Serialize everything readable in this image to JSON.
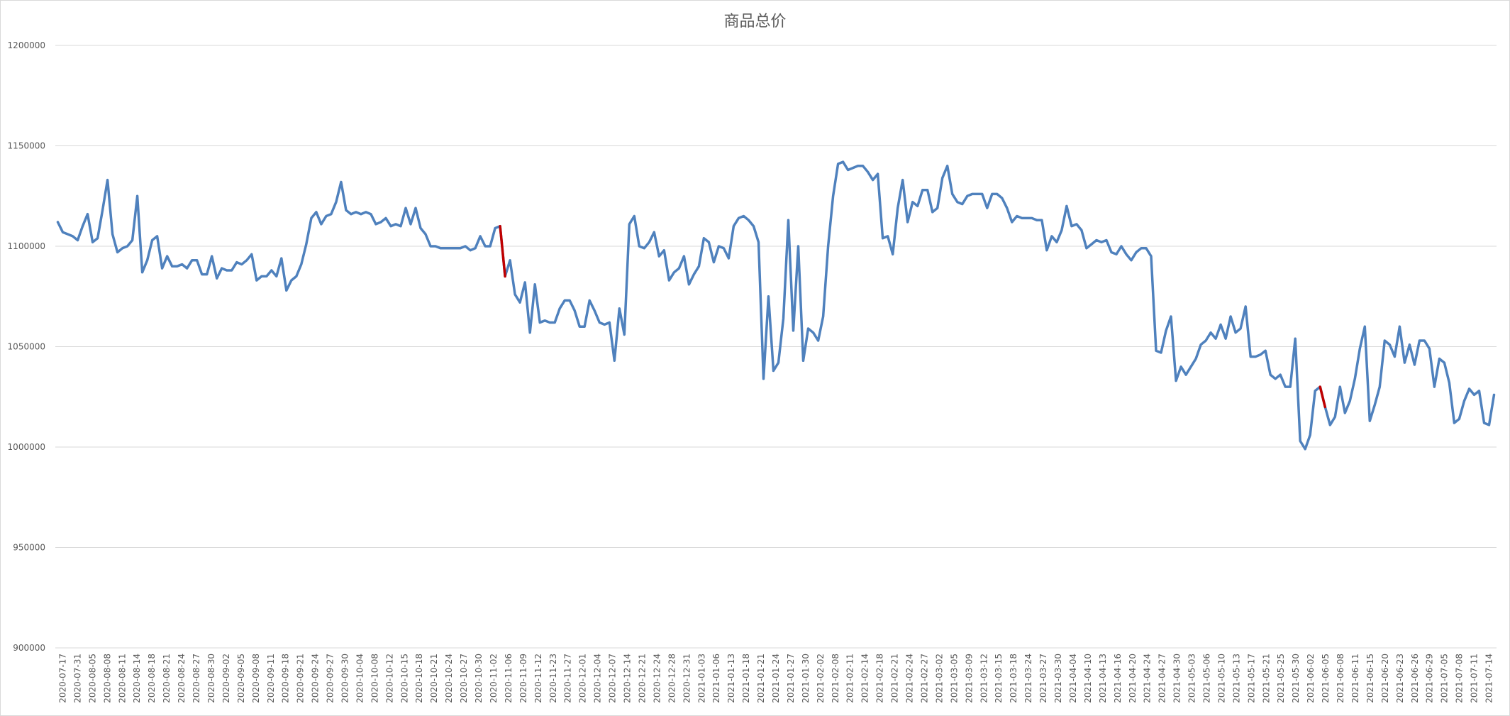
{
  "chart_data": {
    "type": "line",
    "title": "商品总价",
    "xlabel": "",
    "ylabel": "",
    "ylim": [
      900000,
      1200000
    ],
    "yticks": [
      900000,
      950000,
      1000000,
      1050000,
      1100000,
      1150000,
      1200000
    ],
    "grid": "horizontal",
    "legend": "none",
    "x_tick_labels": [
      "2020-07-17",
      "2020-07-31",
      "2020-08-05",
      "2020-08-08",
      "2020-08-11",
      "2020-08-14",
      "2020-08-18",
      "2020-08-21",
      "2020-08-24",
      "2020-08-27",
      "2020-08-30",
      "2020-09-02",
      "2020-09-05",
      "2020-09-08",
      "2020-09-11",
      "2020-09-18",
      "2020-09-21",
      "2020-09-24",
      "2020-09-27",
      "2020-09-30",
      "2020-10-04",
      "2020-10-08",
      "2020-10-12",
      "2020-10-15",
      "2020-10-18",
      "2020-10-21",
      "2020-10-24",
      "2020-10-27",
      "2020-10-30",
      "2020-11-02",
      "2020-11-06",
      "2020-11-09",
      "2020-11-12",
      "2020-11-23",
      "2020-11-27",
      "2020-12-01",
      "2020-12-04",
      "2020-12-07",
      "2020-12-14",
      "2020-12-21",
      "2020-12-24",
      "2020-12-28",
      "2020-12-31",
      "2021-01-03",
      "2021-01-06",
      "2021-01-13",
      "2021-01-18",
      "2021-01-21",
      "2021-01-24",
      "2021-01-27",
      "2021-01-30",
      "2021-02-02",
      "2021-02-08",
      "2021-02-11",
      "2021-02-14",
      "2021-02-18",
      "2021-02-21",
      "2021-02-24",
      "2021-02-27",
      "2021-03-02",
      "2021-03-05",
      "2021-03-09",
      "2021-03-12",
      "2021-03-15",
      "2021-03-18",
      "2021-03-24",
      "2021-03-27",
      "2021-03-30",
      "2021-04-04",
      "2021-04-10",
      "2021-04-13",
      "2021-04-16",
      "2021-04-20",
      "2021-04-24",
      "2021-04-27",
      "2021-04-30",
      "2021-05-03",
      "2021-05-06",
      "2021-05-10",
      "2021-05-13",
      "2021-05-17",
      "2021-05-21",
      "2021-05-25",
      "2021-05-30",
      "2021-06-02",
      "2021-06-05",
      "2021-06-08",
      "2021-06-11",
      "2021-06-15",
      "2021-06-20",
      "2021-06-23",
      "2021-06-26",
      "2021-06-29",
      "2021-07-05",
      "2021-07-08",
      "2021-07-11",
      "2021-07-14"
    ],
    "series": [
      {
        "color": "#4f81bd",
        "highlight_color": "#c00000",
        "highlight_segments": [
          [
            89,
            90
          ],
          [
            254,
            255
          ]
        ],
        "values": [
          1112000,
          1107000,
          1106000,
          1105000,
          1103000,
          1110000,
          1116000,
          1102000,
          1104000,
          1118000,
          1133000,
          1106000,
          1097000,
          1099000,
          1100000,
          1103000,
          1125000,
          1087000,
          1093000,
          1103000,
          1105000,
          1089000,
          1095000,
          1090000,
          1090000,
          1091000,
          1089000,
          1093000,
          1093000,
          1086000,
          1086000,
          1095000,
          1084000,
          1089000,
          1088000,
          1088000,
          1092000,
          1091000,
          1093000,
          1096000,
          1083000,
          1085000,
          1085000,
          1088000,
          1085000,
          1094000,
          1078000,
          1083000,
          1085000,
          1091000,
          1101000,
          1114000,
          1117000,
          1111000,
          1115000,
          1116000,
          1122000,
          1132000,
          1118000,
          1116000,
          1117000,
          1116000,
          1117000,
          1116000,
          1111000,
          1112000,
          1114000,
          1110000,
          1111000,
          1110000,
          1119000,
          1111000,
          1119000,
          1109000,
          1106000,
          1100000,
          1100000,
          1099000,
          1099000,
          1099000,
          1099000,
          1099000,
          1100000,
          1098000,
          1099000,
          1105000,
          1100000,
          1100000,
          1109000,
          1110000,
          1085000,
          1093000,
          1076000,
          1072000,
          1082000,
          1057000,
          1081000,
          1062000,
          1063000,
          1062000,
          1062000,
          1069000,
          1073000,
          1073000,
          1068000,
          1060000,
          1060000,
          1073000,
          1068000,
          1062000,
          1061000,
          1062000,
          1043000,
          1069000,
          1056000,
          1111000,
          1115000,
          1100000,
          1099000,
          1102000,
          1107000,
          1095000,
          1098000,
          1083000,
          1087000,
          1089000,
          1095000,
          1081000,
          1086000,
          1090000,
          1104000,
          1102000,
          1092000,
          1100000,
          1099000,
          1094000,
          1110000,
          1114000,
          1115000,
          1113000,
          1110000,
          1102000,
          1034000,
          1075000,
          1038000,
          1042000,
          1064000,
          1113000,
          1058000,
          1100000,
          1043000,
          1059000,
          1057000,
          1053000,
          1065000,
          1100000,
          1125000,
          1141000,
          1142000,
          1138000,
          1139000,
          1140000,
          1140000,
          1137000,
          1133000,
          1136000,
          1104000,
          1105000,
          1096000,
          1119000,
          1133000,
          1112000,
          1122000,
          1120000,
          1128000,
          1128000,
          1117000,
          1119000,
          1134000,
          1140000,
          1126000,
          1122000,
          1121000,
          1125000,
          1126000,
          1126000,
          1126000,
          1119000,
          1126000,
          1126000,
          1124000,
          1119000,
          1112000,
          1115000,
          1114000,
          1114000,
          1114000,
          1113000,
          1113000,
          1098000,
          1105000,
          1102000,
          1108000,
          1120000,
          1110000,
          1111000,
          1108000,
          1099000,
          1101000,
          1103000,
          1102000,
          1103000,
          1097000,
          1096000,
          1100000,
          1096000,
          1093000,
          1097000,
          1099000,
          1099000,
          1095000,
          1048000,
          1047000,
          1058000,
          1065000,
          1033000,
          1040000,
          1036000,
          1040000,
          1044000,
          1051000,
          1053000,
          1057000,
          1054000,
          1061000,
          1054000,
          1065000,
          1057000,
          1059000,
          1070000,
          1045000,
          1045000,
          1046000,
          1048000,
          1036000,
          1034000,
          1036000,
          1030000,
          1030000,
          1054000,
          1003000,
          999000,
          1006000,
          1028000,
          1030000,
          1020000,
          1011000,
          1015000,
          1030000,
          1017000,
          1023000,
          1034000,
          1049000,
          1060000,
          1013000,
          1021000,
          1030000,
          1053000,
          1051000,
          1045000,
          1060000,
          1042000,
          1051000,
          1041000,
          1053000,
          1053000,
          1049000,
          1030000,
          1044000,
          1042000,
          1032000,
          1012000,
          1014000,
          1023000,
          1029000,
          1026000,
          1028000,
          1012000,
          1011000,
          1026000
        ]
      }
    ]
  }
}
